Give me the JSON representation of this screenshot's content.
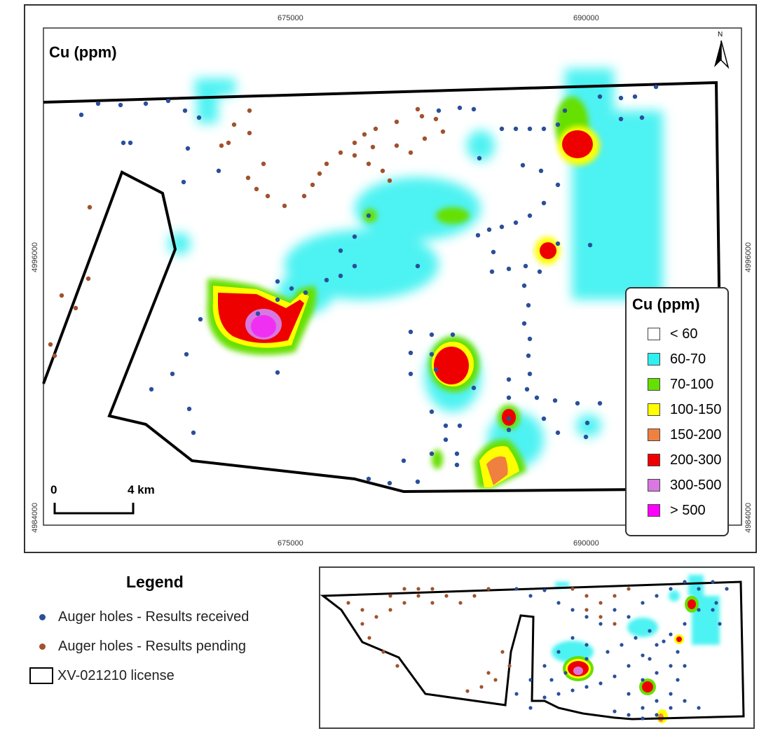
{
  "map": {
    "title": "Cu (ppm)",
    "x_ticks": [
      "675000",
      "690000"
    ],
    "y_ticks": [
      "4996000",
      "4984000"
    ],
    "north_label": "N",
    "scale_start": "0",
    "scale_end": "4 km"
  },
  "cu_legend": {
    "title": "Cu (ppm)",
    "classes": [
      {
        "label": "< 60",
        "color": "#ffffff"
      },
      {
        "label": "60-70",
        "color": "#2ef0f0"
      },
      {
        "label": "70-100",
        "color": "#66e000"
      },
      {
        "label": "100-150",
        "color": "#ffff00"
      },
      {
        "label": "150-200",
        "color": "#f08040"
      },
      {
        "label": "200-300",
        "color": "#ee0000"
      },
      {
        "label": "300-500",
        "color": "#d878e0"
      },
      {
        "label": "> 500",
        "color": "#ff00ff"
      }
    ]
  },
  "legend": {
    "title": "Legend",
    "items": [
      {
        "label": "Auger holes - Results received",
        "color": "#2a4f9a",
        "symbol": "dot"
      },
      {
        "label": "Auger holes - Results pending",
        "color": "#a0522d",
        "symbol": "dot"
      },
      {
        "label": "XV-021210 license",
        "color": "#000000",
        "symbol": "box"
      }
    ]
  }
}
